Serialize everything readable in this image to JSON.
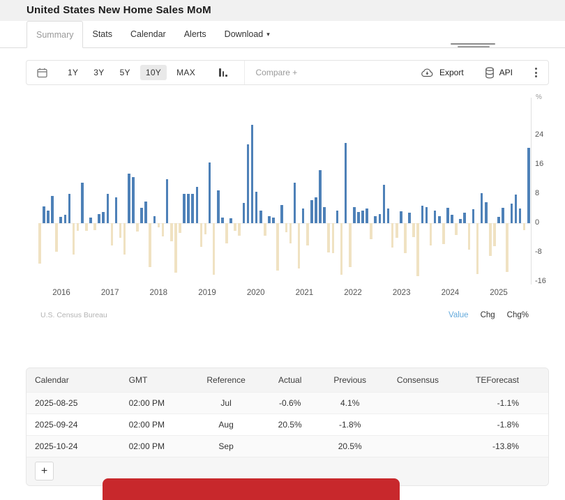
{
  "header": {
    "title": "United States New Home Sales MoM"
  },
  "tabs": {
    "items": [
      {
        "label": "Summary",
        "active": true
      },
      {
        "label": "Stats",
        "active": false
      },
      {
        "label": "Calendar",
        "active": false
      },
      {
        "label": "Alerts",
        "active": false
      },
      {
        "label": "Download",
        "active": false,
        "caret": "▾"
      }
    ]
  },
  "toolbar": {
    "calendar_icon": "calendar",
    "ranges": [
      "1Y",
      "3Y",
      "5Y",
      "10Y",
      "MAX"
    ],
    "active_range": "10Y",
    "chart_type_icon": "column-chart",
    "compare_placeholder": "Compare +",
    "export_label": "Export",
    "export_icon": "cloud-download",
    "api_label": "API",
    "api_icon": "database",
    "menu_icon": "kebab-vertical"
  },
  "chart_data": {
    "type": "bar",
    "title": "United States New Home Sales MoM",
    "unit": "%",
    "frequency": "monthly",
    "start": "2016-01",
    "values": [
      -11,
      4.5,
      3.5,
      7.5,
      -7.8,
      1.7,
      2.2,
      8,
      -8.5,
      -2,
      11,
      -2,
      1.5,
      -1.8,
      2.5,
      3,
      8,
      -6,
      7,
      -4,
      -8.5,
      13.5,
      12.5,
      -2.2,
      4.2,
      6,
      -12,
      2,
      -1.2,
      -3.6,
      12,
      -5,
      -13.5,
      -2.6,
      8,
      8,
      8,
      10,
      -6.5,
      -3,
      16.5,
      -14,
      9,
      1.5,
      -5.5,
      1.3,
      -2,
      -3.4,
      5.5,
      21.5,
      26.8,
      8.5,
      3.4,
      -3.4,
      2,
      1.6,
      -13,
      5,
      -2.4,
      -5.6,
      11,
      -12.4,
      4,
      -6,
      6.3,
      7,
      14.5,
      4.4,
      -8,
      -8.2,
      3.4,
      -14,
      22,
      -12,
      4.4,
      3,
      3.4,
      4,
      -4.4,
      2,
      2.4,
      10.4,
      4,
      -6.6,
      -4,
      3.2,
      -8.2,
      2.8,
      -3.8,
      -14.4,
      4.8,
      4.4,
      -6,
      3.4,
      2,
      -5.8,
      4.2,
      2.3,
      -3.2,
      1.2,
      2.8,
      -7.2,
      3.8,
      -13.8,
      8.2,
      5.8,
      -9,
      -6.2,
      1.8,
      4.2,
      -13.4,
      5.4,
      7.8,
      4.1,
      -1.8,
      20.5
    ],
    "x_tick_labels": [
      "2016",
      "2017",
      "2018",
      "2019",
      "2020",
      "2021",
      "2022",
      "2023",
      "2024",
      "2025"
    ],
    "y_ticks": [
      24,
      16,
      8,
      0,
      -8,
      -16
    ],
    "y_axis_label": "%",
    "ylim": [
      -17,
      29
    ],
    "grid": false,
    "positive_color": "#4e81b8",
    "negative_color": "#f0e2c2",
    "source": "U.S. Census Bureau",
    "legend_position": "bottom-right",
    "legend": [
      {
        "label": "Value",
        "color": "#64aadc",
        "selected": true
      },
      {
        "label": "Chg",
        "color": "#333333",
        "selected": false
      },
      {
        "label": "Chg%",
        "color": "#333333",
        "selected": false
      }
    ]
  },
  "table": {
    "columns": [
      "Calendar",
      "GMT",
      "Reference",
      "Actual",
      "Previous",
      "Consensus",
      "TEForecast"
    ],
    "rows": [
      [
        "2025-08-25",
        "02:00 PM",
        "Jul",
        "-0.6%",
        "4.1%",
        "",
        "-1.1%"
      ],
      [
        "2025-09-24",
        "02:00 PM",
        "Aug",
        "20.5%",
        "-1.8%",
        "",
        "-1.8%"
      ],
      [
        "2025-10-24",
        "02:00 PM",
        "Sep",
        "",
        "20.5%",
        "",
        "-13.8%"
      ]
    ],
    "add_row_label": "+"
  },
  "banner": {
    "color": "#c8282c"
  }
}
